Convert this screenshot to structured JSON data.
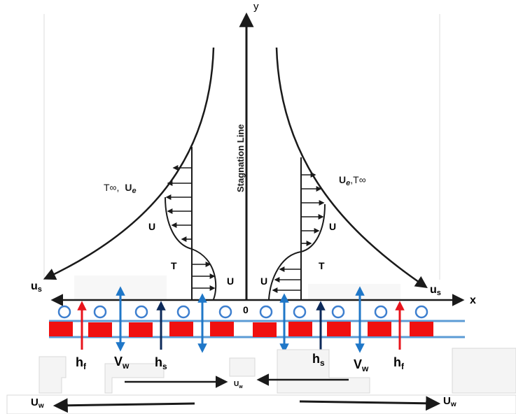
{
  "labels": {
    "y_axis": "y",
    "x_axis": "x",
    "origin": "0",
    "stagnation": "Stagnation Line",
    "left_free_stream_T": "T∞,",
    "left_free_stream_U": "U",
    "left_free_stream_U_sub": "e",
    "right_free_stream_U": "U",
    "right_free_stream_U_sub": "e",
    "right_free_stream_T": ",T∞",
    "U": "U",
    "T": "T",
    "us": "u",
    "us_sub": "s",
    "Vw": "V",
    "Vw_sub": "w",
    "hf": "h",
    "hf_sub": "f",
    "hs": "h",
    "hs_sub": "s",
    "Uw": "U",
    "Uw_sub": "w",
    "Uw_small": "U",
    "Uw_small_sub": "w"
  },
  "colors": {
    "axis": "#1a1a1a",
    "blue_arrow": "#1f77c8",
    "navy_arrow": "#0d2a5a",
    "red_arrow": "#e8141c",
    "red_block": "#f01010",
    "circle": "#3d7fcf",
    "sheet_line": "#5b9bd5"
  }
}
